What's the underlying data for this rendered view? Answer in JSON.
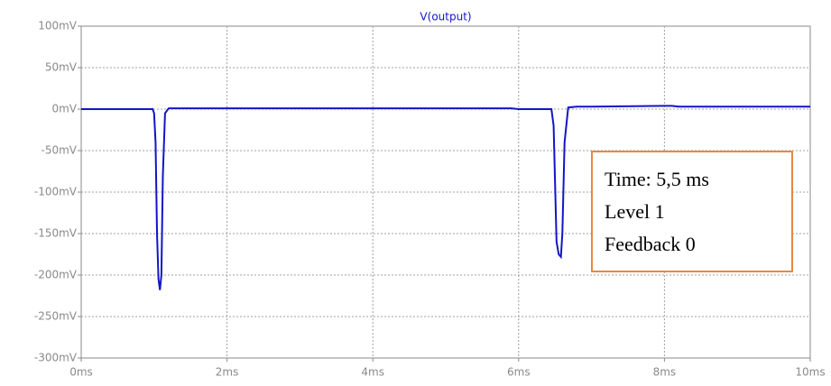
{
  "chart_data": {
    "type": "line",
    "x": [
      0,
      0.98,
      1.0,
      1.02,
      1.04,
      1.06,
      1.08,
      1.1,
      1.12,
      1.15,
      1.2,
      1.3,
      2,
      4,
      5.9,
      6.0,
      6.45,
      6.48,
      6.5,
      6.52,
      6.55,
      6.58,
      6.6,
      6.63,
      6.68,
      6.8,
      7,
      8,
      8.1,
      8.2,
      10
    ],
    "series": [
      {
        "name": "V(output)",
        "color": "#1414c8",
        "values": [
          0,
          0,
          -5,
          -40,
          -150,
          -205,
          -218,
          -200,
          -80,
          -5,
          1,
          1,
          1,
          1,
          1,
          0,
          0,
          -20,
          -90,
          -160,
          -175,
          -178,
          -150,
          -40,
          2,
          3,
          3,
          4,
          4,
          3,
          3
        ]
      }
    ],
    "xlim": [
      0,
      10
    ],
    "xticks": [
      {
        "value": 0,
        "label": "0ms"
      },
      {
        "value": 2,
        "label": "2ms"
      },
      {
        "value": 4,
        "label": "4ms"
      },
      {
        "value": 6,
        "label": "6ms"
      },
      {
        "value": 8,
        "label": "8ms"
      },
      {
        "value": 10,
        "label": "10ms"
      }
    ],
    "ylim": [
      -300,
      100
    ],
    "yticks": [
      {
        "value": 100,
        "label": "100mV"
      },
      {
        "value": 50,
        "label": "50mV"
      },
      {
        "value": 0,
        "label": "0mV"
      },
      {
        "value": -50,
        "label": "-50mV"
      },
      {
        "value": -100,
        "label": "-100mV"
      },
      {
        "value": -150,
        "label": "-150mV"
      },
      {
        "value": -200,
        "label": "-200mV"
      },
      {
        "value": -250,
        "label": "-250mV"
      },
      {
        "value": -300,
        "label": "-300mV"
      }
    ],
    "grid": true,
    "annotations": [
      "Time: 5,5 ms",
      "Level 1",
      "Feedback 0"
    ]
  }
}
